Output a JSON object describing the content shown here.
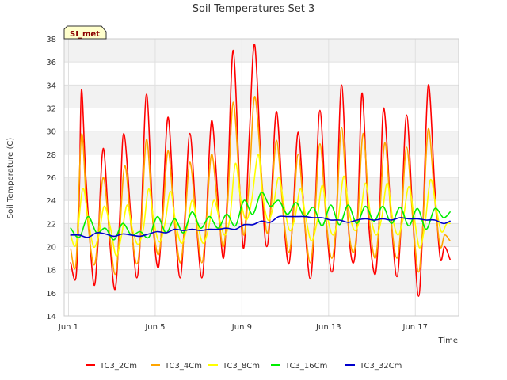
{
  "chart_data": {
    "type": "line",
    "title": "Soil Temperatures Set 3",
    "xlabel": "Time",
    "ylabel": "Soil Temperature (C)",
    "badge": "SI_met",
    "xlim": [
      0.8,
      19.0
    ],
    "ylim": [
      14,
      38
    ],
    "x_ticks": [
      {
        "value": 1,
        "label": "Jun 1"
      },
      {
        "value": 5,
        "label": "Jun 5"
      },
      {
        "value": 9,
        "label": "Jun 9"
      },
      {
        "value": 13,
        "label": "Jun 13"
      },
      {
        "value": 17,
        "label": "Jun 17"
      }
    ],
    "y_ticks": [
      14,
      16,
      18,
      20,
      22,
      24,
      26,
      28,
      30,
      32,
      34,
      36,
      38
    ],
    "grid": true,
    "legend_position": "bottom",
    "x_unit": "day of June",
    "series": [
      {
        "name": "TC3_2Cm",
        "color": "#ff0000",
        "x": [
          1.1,
          1.35,
          1.5,
          1.6,
          1.8,
          2.15,
          2.35,
          2.6,
          2.9,
          3.15,
          3.35,
          3.55,
          3.9,
          4.15,
          4.35,
          4.6,
          4.9,
          5.15,
          5.35,
          5.6,
          5.9,
          6.15,
          6.35,
          6.6,
          6.9,
          7.15,
          7.35,
          7.6,
          7.9,
          8.15,
          8.35,
          8.6,
          8.9,
          9.1,
          9.35,
          9.6,
          9.95,
          10.15,
          10.35,
          10.6,
          10.9,
          11.15,
          11.35,
          11.6,
          11.9,
          12.15,
          12.35,
          12.6,
          12.9,
          13.15,
          13.35,
          13.6,
          13.9,
          14.15,
          14.35,
          14.55,
          14.85,
          15.15,
          15.35,
          15.55,
          15.9,
          16.15,
          16.35,
          16.6,
          16.9,
          17.15,
          17.35,
          17.6,
          17.9,
          18.15,
          18.35,
          18.6
        ],
        "y": [
          18.6,
          17.4,
          25.0,
          33.6,
          26.0,
          16.9,
          20.0,
          28.5,
          20.5,
          16.3,
          22.0,
          29.8,
          22.0,
          17.3,
          22.0,
          33.2,
          22.0,
          18.2,
          23.5,
          31.2,
          22.0,
          17.3,
          22.0,
          29.8,
          22.0,
          17.3,
          22.0,
          30.9,
          24.0,
          19.0,
          25.5,
          37.0,
          25.0,
          20.0,
          30.0,
          37.4,
          24.0,
          20.0,
          24.0,
          31.7,
          23.0,
          18.5,
          22.5,
          29.9,
          22.0,
          17.2,
          22.0,
          31.8,
          22.0,
          17.8,
          22.0,
          34.0,
          22.0,
          18.6,
          23.0,
          33.3,
          22.0,
          17.6,
          23.0,
          32.0,
          22.0,
          17.4,
          22.0,
          31.4,
          22.0,
          15.7,
          22.0,
          34.0,
          25.0,
          19.0,
          20.0,
          18.9
        ]
      },
      {
        "name": "TC3_4Cm",
        "color": "#ffa500",
        "x": [
          1.1,
          1.35,
          1.6,
          1.85,
          2.15,
          2.35,
          2.6,
          2.9,
          3.15,
          3.35,
          3.6,
          3.9,
          4.15,
          4.35,
          4.6,
          4.9,
          5.15,
          5.35,
          5.6,
          5.9,
          6.15,
          6.35,
          6.6,
          6.9,
          7.15,
          7.35,
          7.6,
          7.9,
          8.15,
          8.35,
          8.6,
          8.9,
          9.1,
          9.35,
          9.6,
          9.95,
          10.15,
          10.35,
          10.6,
          10.9,
          11.15,
          11.35,
          11.6,
          11.9,
          12.15,
          12.35,
          12.6,
          12.9,
          13.15,
          13.35,
          13.6,
          13.9,
          14.15,
          14.35,
          14.6,
          14.9,
          15.15,
          15.35,
          15.6,
          15.9,
          16.15,
          16.35,
          16.6,
          16.9,
          17.15,
          17.35,
          17.6,
          17.9,
          18.15,
          18.35,
          18.6
        ],
        "y": [
          19.8,
          18.6,
          29.7,
          23.0,
          18.5,
          20.5,
          26.0,
          21.0,
          17.6,
          21.0,
          27.0,
          21.5,
          18.5,
          21.5,
          29.3,
          22.0,
          19.3,
          22.5,
          28.3,
          22.0,
          18.6,
          21.5,
          27.3,
          22.0,
          18.6,
          22.0,
          28.0,
          23.0,
          20.0,
          24.0,
          32.5,
          25.0,
          21.0,
          26.0,
          33.0,
          25.0,
          21.2,
          23.5,
          29.2,
          23.0,
          19.5,
          22.0,
          28.0,
          22.0,
          18.6,
          22.0,
          28.9,
          22.0,
          19.0,
          22.0,
          30.3,
          22.0,
          19.5,
          22.5,
          29.8,
          22.0,
          19.0,
          22.5,
          29.0,
          22.0,
          19.0,
          22.0,
          28.6,
          22.0,
          17.8,
          22.0,
          30.2,
          24.0,
          20.0,
          21.0,
          20.5
        ]
      },
      {
        "name": "TC3_8Cm",
        "color": "#ffff00",
        "x": [
          1.1,
          1.35,
          1.65,
          1.9,
          2.15,
          2.4,
          2.65,
          2.95,
          3.2,
          3.45,
          3.7,
          3.95,
          4.2,
          4.45,
          4.7,
          4.95,
          5.2,
          5.45,
          5.7,
          5.95,
          6.2,
          6.45,
          6.7,
          6.95,
          7.2,
          7.45,
          7.7,
          7.95,
          8.2,
          8.45,
          8.7,
          8.95,
          9.2,
          9.45,
          9.75,
          9.95,
          10.2,
          10.45,
          10.7,
          10.95,
          11.2,
          11.45,
          11.7,
          11.95,
          12.2,
          12.45,
          12.7,
          12.95,
          13.2,
          13.45,
          13.7,
          13.95,
          14.2,
          14.45,
          14.7,
          14.95,
          15.2,
          15.45,
          15.7,
          15.95,
          16.2,
          16.45,
          16.7,
          16.95,
          17.2,
          17.45,
          17.7,
          17.95,
          18.2,
          18.45,
          18.6
        ],
        "y": [
          21.0,
          20.2,
          25.0,
          22.5,
          20.0,
          21.0,
          23.5,
          21.5,
          19.2,
          21.0,
          23.6,
          21.5,
          20.2,
          21.5,
          25.0,
          22.0,
          20.4,
          22.0,
          24.8,
          22.0,
          20.3,
          21.5,
          24.0,
          22.0,
          20.3,
          21.5,
          24.0,
          22.5,
          21.0,
          22.5,
          27.2,
          24.0,
          22.3,
          24.0,
          28.0,
          24.5,
          22.3,
          23.5,
          26.0,
          23.5,
          21.4,
          22.5,
          25.0,
          22.5,
          20.5,
          22.0,
          25.3,
          22.5,
          21.0,
          22.5,
          26.1,
          23.0,
          21.4,
          22.5,
          25.5,
          22.5,
          21.0,
          22.5,
          25.5,
          22.5,
          21.0,
          22.5,
          25.2,
          22.5,
          19.9,
          22.0,
          25.8,
          23.5,
          21.3,
          22.0,
          22.0
        ]
      },
      {
        "name": "TC3_16Cm",
        "color": "#00ee00",
        "x": [
          1.1,
          1.5,
          1.9,
          2.3,
          2.7,
          3.1,
          3.5,
          3.9,
          4.3,
          4.7,
          5.1,
          5.5,
          5.9,
          6.3,
          6.7,
          7.1,
          7.5,
          7.9,
          8.3,
          8.7,
          9.1,
          9.5,
          9.9,
          10.3,
          10.7,
          11.1,
          11.5,
          11.9,
          12.3,
          12.7,
          13.1,
          13.5,
          13.9,
          14.3,
          14.7,
          15.1,
          15.5,
          15.9,
          16.3,
          16.7,
          17.1,
          17.5,
          17.9,
          18.3,
          18.6
        ],
        "y": [
          21.6,
          20.8,
          22.6,
          21.2,
          21.6,
          20.6,
          22.0,
          21.0,
          21.3,
          20.8,
          22.6,
          21.2,
          22.4,
          21.2,
          23.0,
          21.6,
          22.6,
          21.6,
          22.8,
          21.8,
          24.0,
          22.8,
          24.7,
          23.5,
          24.0,
          22.8,
          23.8,
          22.6,
          23.4,
          21.8,
          23.6,
          21.9,
          23.6,
          22.0,
          23.5,
          22.2,
          23.5,
          22.0,
          23.4,
          21.8,
          23.3,
          21.5,
          23.3,
          22.5,
          23.0
        ]
      },
      {
        "name": "TC3_32Cm",
        "color": "#0000cc",
        "x": [
          1.1,
          1.5,
          1.9,
          2.3,
          2.7,
          3.1,
          3.5,
          3.9,
          4.3,
          4.7,
          5.1,
          5.5,
          5.9,
          6.3,
          6.7,
          7.1,
          7.5,
          7.9,
          8.3,
          8.7,
          9.1,
          9.5,
          9.9,
          10.3,
          10.7,
          11.1,
          11.5,
          11.9,
          12.3,
          12.7,
          13.1,
          13.5,
          13.9,
          14.3,
          14.7,
          15.1,
          15.5,
          15.9,
          16.3,
          16.7,
          17.1,
          17.5,
          17.9,
          18.3,
          18.6
        ],
        "y": [
          21.0,
          21.0,
          20.8,
          21.2,
          21.1,
          20.9,
          21.1,
          21.0,
          20.9,
          21.1,
          21.3,
          21.2,
          21.5,
          21.4,
          21.5,
          21.4,
          21.5,
          21.5,
          21.6,
          21.5,
          21.9,
          21.9,
          22.2,
          22.1,
          22.6,
          22.6,
          22.6,
          22.6,
          22.5,
          22.5,
          22.3,
          22.3,
          22.1,
          22.3,
          22.4,
          22.3,
          22.4,
          22.3,
          22.5,
          22.4,
          22.4,
          22.3,
          22.3,
          22.0,
          22.2
        ]
      }
    ]
  }
}
